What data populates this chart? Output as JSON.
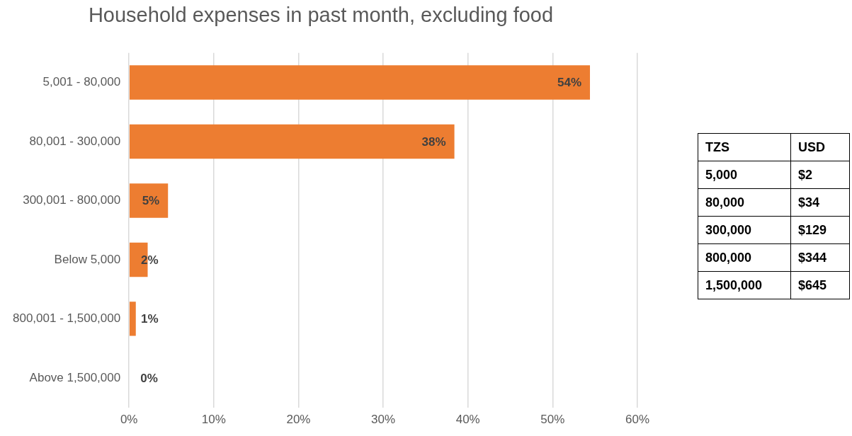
{
  "chart_data": [
    {
      "type": "bar",
      "orientation": "horizontal",
      "title": "Household expenses in past month, excluding food",
      "categories": [
        "5,001 - 80,000",
        "80,001 - 300,000",
        "300,001 - 800,000",
        "Below 5,000",
        "800,001 - 1,500,000",
        "Above 1,500,000"
      ],
      "values": [
        54.4,
        38.4,
        4.6,
        2.2,
        0.8,
        0
      ],
      "value_labels": [
        "54%",
        "38%",
        "5%",
        "2%",
        "1%",
        "0%"
      ],
      "color": "#ed7d31",
      "xlim": [
        0,
        60
      ],
      "xticks": [
        {
          "value": 0,
          "label": "0%"
        },
        {
          "value": 10,
          "label": "10%"
        },
        {
          "value": 20,
          "label": "20%"
        },
        {
          "value": 30,
          "label": "30%"
        },
        {
          "value": 40,
          "label": "40%"
        },
        {
          "value": 50,
          "label": "50%"
        },
        {
          "value": 60,
          "label": "60%"
        }
      ],
      "grid": "x",
      "legend": false
    },
    {
      "type": "other",
      "categories": [
        "TZS",
        "USD"
      ],
      "annotations": [
        "5,000",
        "$2",
        "80,000",
        "$34",
        "300,000",
        "$129",
        "800,000",
        "$344",
        "1,500,000",
        "$645"
      ]
    }
  ]
}
